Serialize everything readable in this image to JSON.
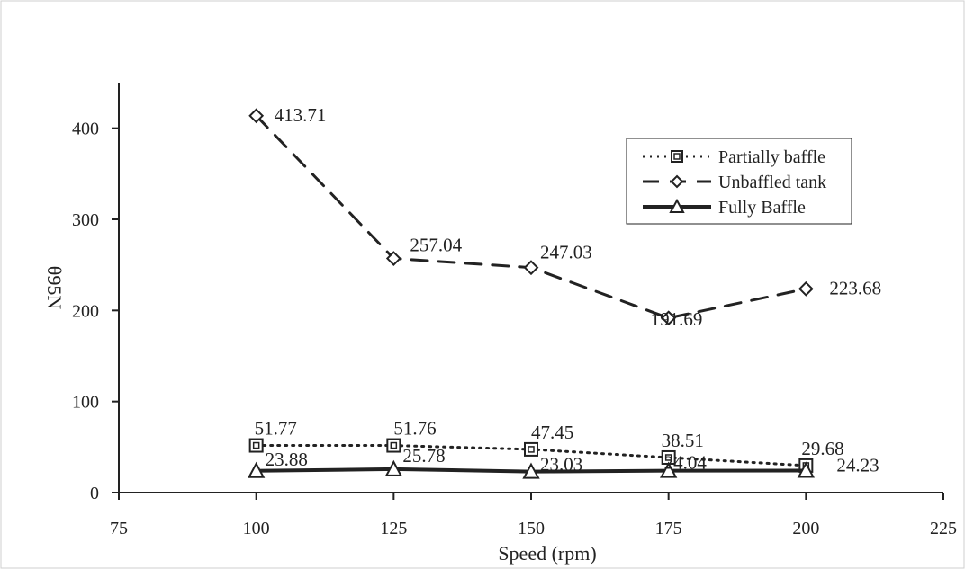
{
  "chart_data": {
    "type": "line",
    "title": "",
    "xlabel": "Speed (rpm)",
    "ylabel": "θ95N",
    "xlim": [
      75,
      225
    ],
    "ylim": [
      0,
      450
    ],
    "x_ticks": [
      75,
      100,
      125,
      150,
      175,
      200,
      225
    ],
    "y_ticks": [
      0,
      100,
      200,
      300,
      400
    ],
    "x_tick_labels": [
      "75",
      "100",
      "125",
      "150",
      "175",
      "200",
      "225"
    ],
    "y_tick_labels": [
      "0",
      "100",
      "200",
      "300",
      "400"
    ],
    "x": [
      100,
      125,
      150,
      175,
      200
    ],
    "grid": false,
    "legend_position": "right",
    "series": [
      {
        "name": "Partially baffle",
        "values": [
          51.77,
          51.76,
          47.45,
          38.51,
          29.68
        ],
        "labels": [
          "51.77",
          "51.76",
          "47.45",
          "38.51",
          "29.68"
        ],
        "line_style": "dotted",
        "marker": "square",
        "color": "#222222"
      },
      {
        "name": "Unbaffled tank",
        "values": [
          413.71,
          257.04,
          247.03,
          191.69,
          223.68
        ],
        "labels": [
          "413.71",
          "257.04",
          "247.03",
          "191.69",
          "223.68"
        ],
        "line_style": "dashed",
        "marker": "diamond",
        "color": "#222222"
      },
      {
        "name": "Fully Baffle",
        "values": [
          23.88,
          25.78,
          23.03,
          24.04,
          24.23
        ],
        "labels": [
          "23.88",
          "25.78",
          "23.03",
          "24.04",
          "24.23"
        ],
        "line_style": "solid",
        "marker": "triangle",
        "color": "#222222"
      }
    ]
  }
}
